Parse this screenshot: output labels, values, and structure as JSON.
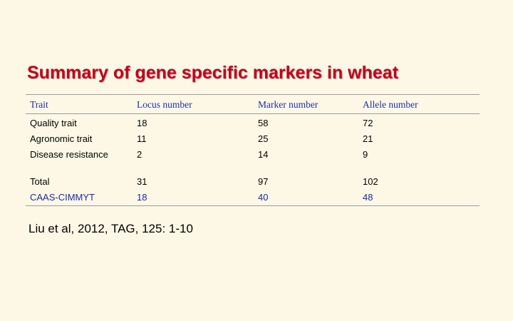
{
  "title": "Summary of gene specific markers in wheat",
  "table": {
    "headers": [
      "Trait",
      "Locus number",
      "Marker number",
      "Allele number"
    ],
    "rows": [
      [
        "Quality trait",
        "18",
        "58",
        "72"
      ],
      [
        "Agronomic trait",
        "11",
        "25",
        "21"
      ],
      [
        "Disease resistance",
        "2",
        "14",
        "9"
      ],
      [
        "Total",
        "31",
        "97",
        "102"
      ],
      [
        "CAAS-CIMMYT",
        "18",
        "40",
        "48"
      ]
    ]
  },
  "citation": "Liu et al, 2012, TAG, 125: 1-10",
  "colors": {
    "title": "#c4001c",
    "header_text": "#1d2ea8",
    "highlight_row": "#1c2aa0",
    "background": "#fdf8e6"
  }
}
